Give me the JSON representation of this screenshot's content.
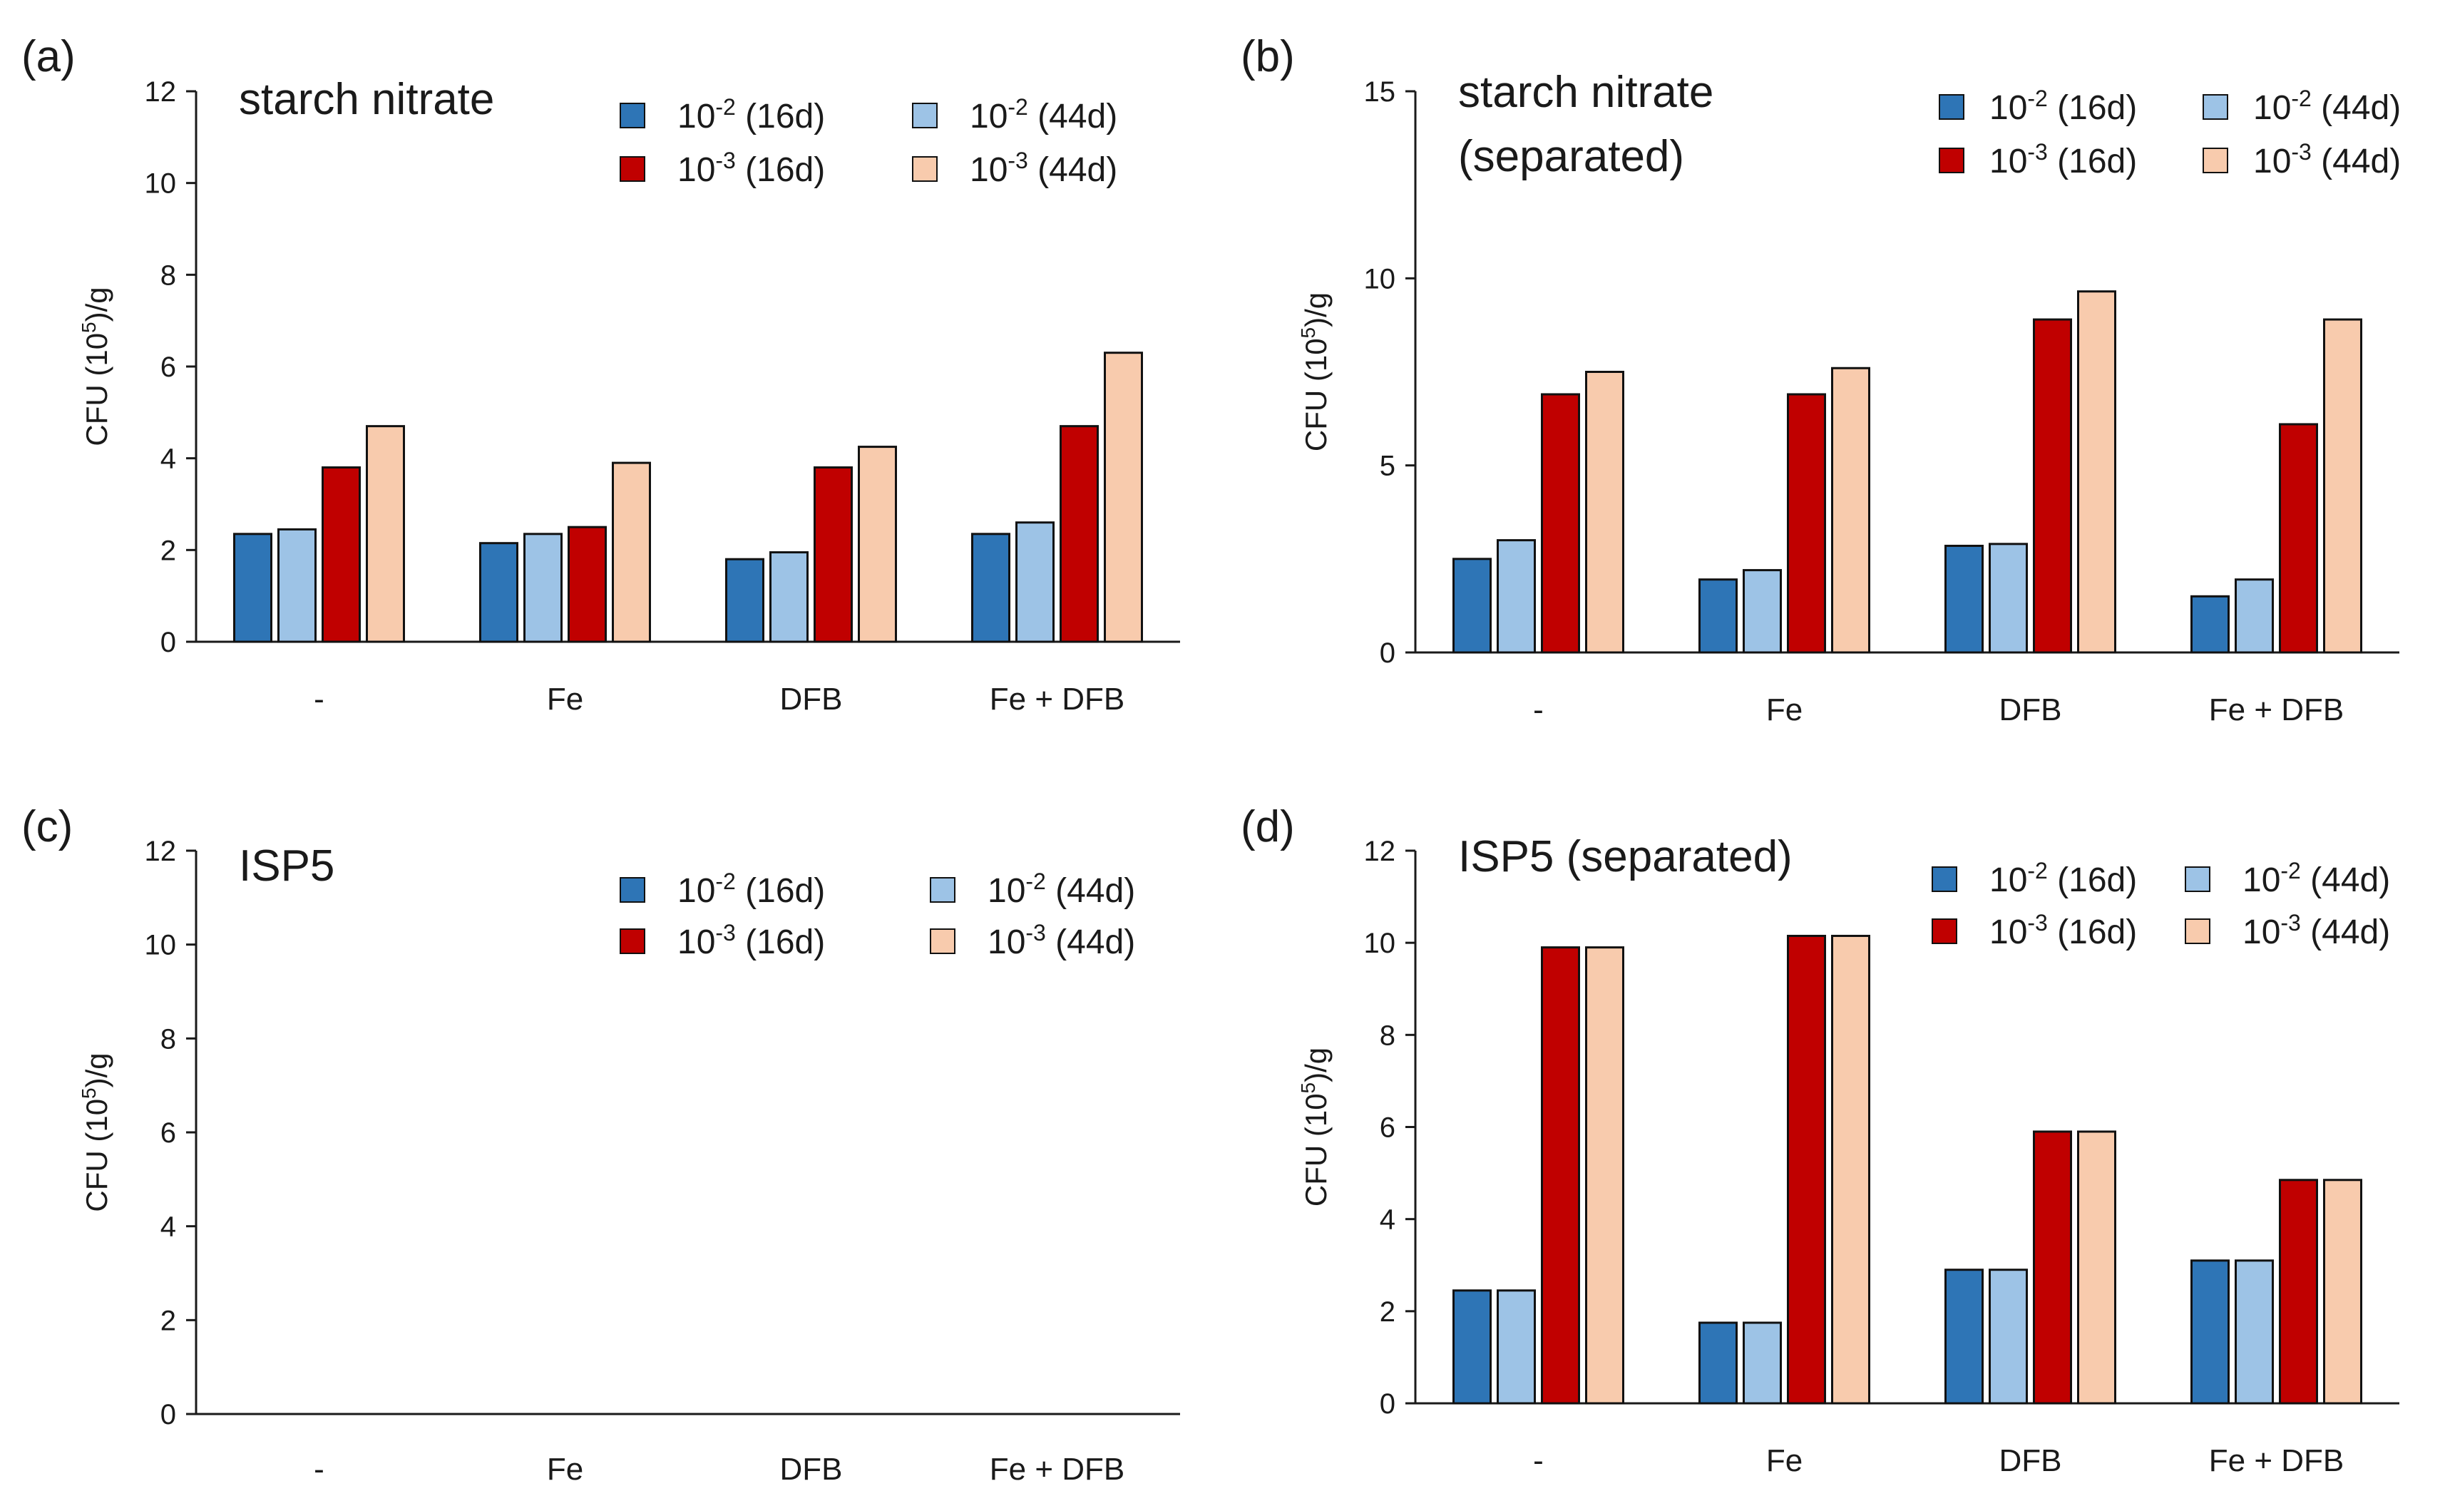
{
  "series_colors": {
    "10-2 (16d)": "#2e75b6",
    "10-2 (44d)": "#9dc3e6",
    "10-3 (16d)": "#c00000",
    "10-3 (44d)": "#f8cbad"
  },
  "chart_data": [
    {
      "type": "bar",
      "panel": "(a)",
      "title": "starch nitrate",
      "ylabel": "CFU (10^5)/g",
      "ylim": [
        0,
        12
      ],
      "yticks": [
        0,
        2,
        4,
        6,
        8,
        10,
        12
      ],
      "categories": [
        "-",
        "Fe",
        "DFB",
        "Fe + DFB"
      ],
      "legend": [
        {
          "base": "10",
          "exp": "-2",
          "suffix": " (16d)",
          "key": "10-2 (16d)"
        },
        {
          "base": "10",
          "exp": "-2",
          "suffix": " (44d)",
          "key": "10-2 (44d)"
        },
        {
          "base": "10",
          "exp": "-3",
          "suffix": " (16d)",
          "key": "10-3 (16d)"
        },
        {
          "base": "10",
          "exp": "-3",
          "suffix": " (44d)",
          "key": "10-3 (44d)"
        }
      ],
      "series": [
        {
          "name": "10-2 (16d)",
          "values": [
            2.35,
            2.15,
            1.8,
            2.35
          ]
        },
        {
          "name": "10-2 (44d)",
          "values": [
            2.45,
            2.35,
            1.95,
            2.6
          ]
        },
        {
          "name": "10-3 (16d)",
          "values": [
            3.8,
            2.5,
            3.8,
            4.7
          ]
        },
        {
          "name": "10-3 (44d)",
          "values": [
            4.7,
            3.9,
            4.25,
            6.3
          ]
        }
      ]
    },
    {
      "type": "bar",
      "panel": "(b)",
      "title": "starch nitrate",
      "subtitle": "(separated)",
      "ylabel": "CFU (10^5)/g",
      "ylim": [
        0,
        15
      ],
      "yticks": [
        0,
        5,
        10,
        15
      ],
      "categories": [
        "-",
        "Fe",
        "DFB",
        "Fe + DFB"
      ],
      "legend": [
        {
          "base": "10",
          "exp": "-2",
          "suffix": " (16d)",
          "key": "10-2 (16d)"
        },
        {
          "base": "10",
          "exp": "-2",
          "suffix": " (44d)",
          "key": "10-2 (44d)"
        },
        {
          "base": "10",
          "exp": "-3",
          "suffix": " (16d)",
          "key": "10-3 (16d)"
        },
        {
          "base": "10",
          "exp": "-3",
          "suffix": " (44d)",
          "key": "10-3 (44d)"
        }
      ],
      "series": [
        {
          "name": "10-2 (16d)",
          "values": [
            2.5,
            1.95,
            2.85,
            1.5
          ]
        },
        {
          "name": "10-2 (44d)",
          "values": [
            3.0,
            2.2,
            2.9,
            1.95
          ]
        },
        {
          "name": "10-3 (16d)",
          "values": [
            6.9,
            6.9,
            8.9,
            6.1
          ]
        },
        {
          "name": "10-3 (44d)",
          "values": [
            7.5,
            7.6,
            9.65,
            8.9
          ]
        }
      ]
    },
    {
      "type": "bar",
      "panel": "(c)",
      "title": "ISP5",
      "ylabel": "CFU (10^5)/g",
      "ylim": [
        0,
        12
      ],
      "yticks": [
        0,
        2,
        4,
        6,
        8,
        10,
        12
      ],
      "categories": [
        "-",
        "Fe",
        "DFB",
        "Fe + DFB"
      ],
      "legend": [
        {
          "base": "10",
          "exp": "-2",
          "suffix": " (16d)",
          "key": "10-2 (16d)"
        },
        {
          "base": "10",
          "exp": "-2",
          "suffix": " (44d)",
          "key": "10-2 (44d)"
        },
        {
          "base": "10",
          "exp": "-3",
          "suffix": " (16d)",
          "key": "10-3 (16d)"
        },
        {
          "base": "10",
          "exp": "-3",
          "suffix": " (44d)",
          "key": "10-3 (44d)"
        }
      ],
      "series": [
        {
          "name": "10-2 (16d)",
          "values": [
            0,
            0,
            0,
            0
          ]
        },
        {
          "name": "10-2 (44d)",
          "values": [
            0,
            0,
            0,
            0
          ]
        },
        {
          "name": "10-3 (16d)",
          "values": [
            0,
            0,
            0,
            0
          ]
        },
        {
          "name": "10-3 (44d)",
          "values": [
            0,
            0,
            0,
            0
          ]
        }
      ]
    },
    {
      "type": "bar",
      "panel": "(d)",
      "title": "ISP5 (separated)",
      "ylabel": "CFU (10^5)/g",
      "ylim": [
        0,
        12
      ],
      "yticks": [
        0,
        2,
        4,
        6,
        8,
        10,
        12
      ],
      "categories": [
        "-",
        "Fe",
        "DFB",
        "Fe + DFB"
      ],
      "legend": [
        {
          "base": "10",
          "exp": "-2",
          "suffix": " (16d)",
          "key": "10-2 (16d)"
        },
        {
          "base": "10",
          "exp": "-2",
          "suffix": " (44d)",
          "key": "10-2 (44d)"
        },
        {
          "base": "10",
          "exp": "-3",
          "suffix": " (16d)",
          "key": "10-3 (16d)"
        },
        {
          "base": "10",
          "exp": "-3",
          "suffix": " (44d)",
          "key": "10-3 (44d)"
        }
      ],
      "series": [
        {
          "name": "10-2 (16d)",
          "values": [
            2.45,
            1.75,
            2.9,
            3.1
          ]
        },
        {
          "name": "10-2 (44d)",
          "values": [
            2.45,
            1.75,
            2.9,
            3.1
          ]
        },
        {
          "name": "10-3 (16d)",
          "values": [
            9.9,
            10.15,
            5.9,
            4.85
          ]
        },
        {
          "name": "10-3 (44d)",
          "values": [
            9.9,
            10.15,
            5.9,
            4.85
          ]
        }
      ]
    }
  ]
}
